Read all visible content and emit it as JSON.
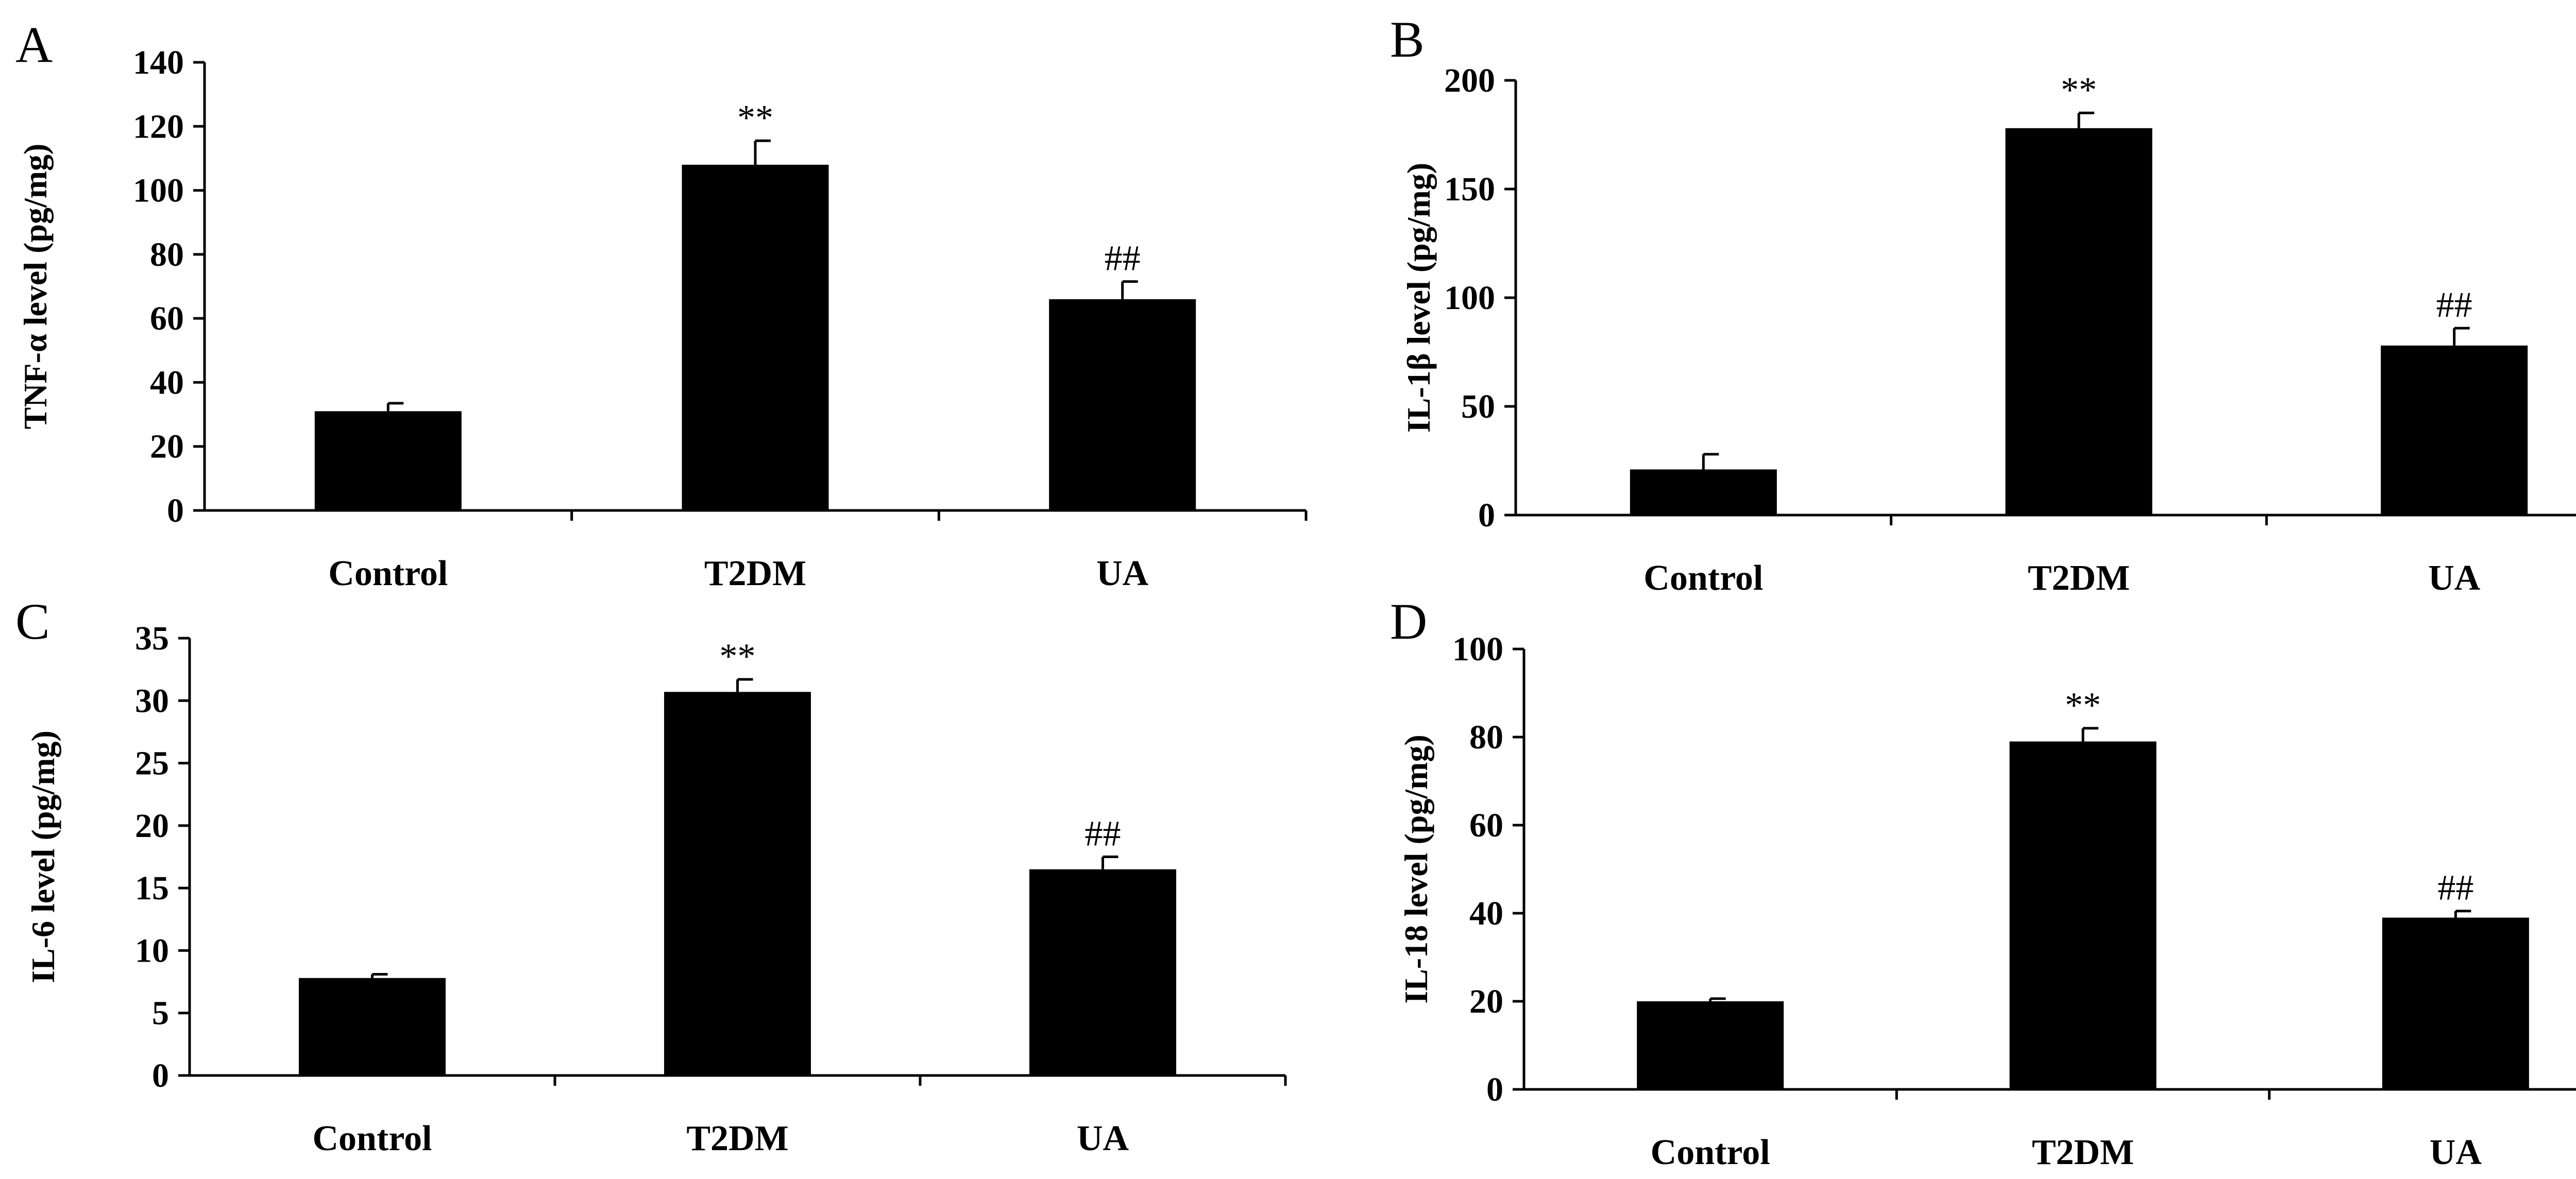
{
  "colors": {
    "bar": "#000000",
    "background": "#ffffff"
  },
  "chart_data": [
    {
      "panel": "A",
      "type": "bar",
      "categories": [
        "Control",
        "T2DM",
        "UA"
      ],
      "values": [
        31,
        108,
        66
      ],
      "errors": [
        2.5,
        7.5,
        5.5
      ],
      "annotations": [
        "",
        "**",
        "##"
      ],
      "title": "",
      "xlabel": "",
      "ylabel": "TNF-α level (pg/mg)",
      "ylim": [
        0,
        140
      ],
      "yticks": [
        0,
        20,
        40,
        60,
        80,
        100,
        120,
        140
      ],
      "ytick_labels": [
        "0",
        "20",
        "40",
        "60",
        "80",
        "100",
        "120",
        "140"
      ],
      "grid": false,
      "legend": "none"
    },
    {
      "panel": "B",
      "type": "bar",
      "categories": [
        "Control",
        "T2DM",
        "UA"
      ],
      "values": [
        21,
        178,
        78
      ],
      "errors": [
        7,
        7,
        8
      ],
      "annotations": [
        "",
        "**",
        "##"
      ],
      "title": "",
      "xlabel": "",
      "ylabel": "IL-1β level (pg/mg)",
      "ylim": [
        0,
        200
      ],
      "yticks": [
        0,
        50,
        100,
        150,
        200
      ],
      "ytick_labels": [
        "0",
        "50",
        "100",
        "150",
        "200"
      ],
      "grid": false,
      "legend": "none"
    },
    {
      "panel": "C",
      "type": "bar",
      "categories": [
        "Control",
        "T2DM",
        "UA"
      ],
      "values": [
        7.8,
        30.7,
        16.5
      ],
      "errors": [
        0.3,
        1.0,
        1.0
      ],
      "annotations": [
        "",
        "**",
        "##"
      ],
      "title": "",
      "xlabel": "",
      "ylabel": "IL-6 level (pg/mg)",
      "ylim": [
        0,
        35
      ],
      "yticks": [
        0,
        5,
        10,
        15,
        20,
        25,
        30,
        35
      ],
      "ytick_labels": [
        "0",
        "5",
        "10",
        "15",
        "20",
        "25",
        "30",
        "35"
      ],
      "grid": false,
      "legend": "none"
    },
    {
      "panel": "D",
      "type": "bar",
      "categories": [
        "Control",
        "T2DM",
        "UA"
      ],
      "values": [
        20,
        79,
        39
      ],
      "errors": [
        0.6,
        3,
        1.5
      ],
      "annotations": [
        "",
        "**",
        "##"
      ],
      "title": "",
      "xlabel": "",
      "ylabel": "IL-18 level (pg/mg)",
      "ylim": [
        0,
        100
      ],
      "yticks": [
        0,
        20,
        40,
        60,
        80,
        100
      ],
      "ytick_labels": [
        "0",
        "20",
        "40",
        "60",
        "80",
        "100"
      ],
      "grid": false,
      "legend": "none"
    }
  ]
}
